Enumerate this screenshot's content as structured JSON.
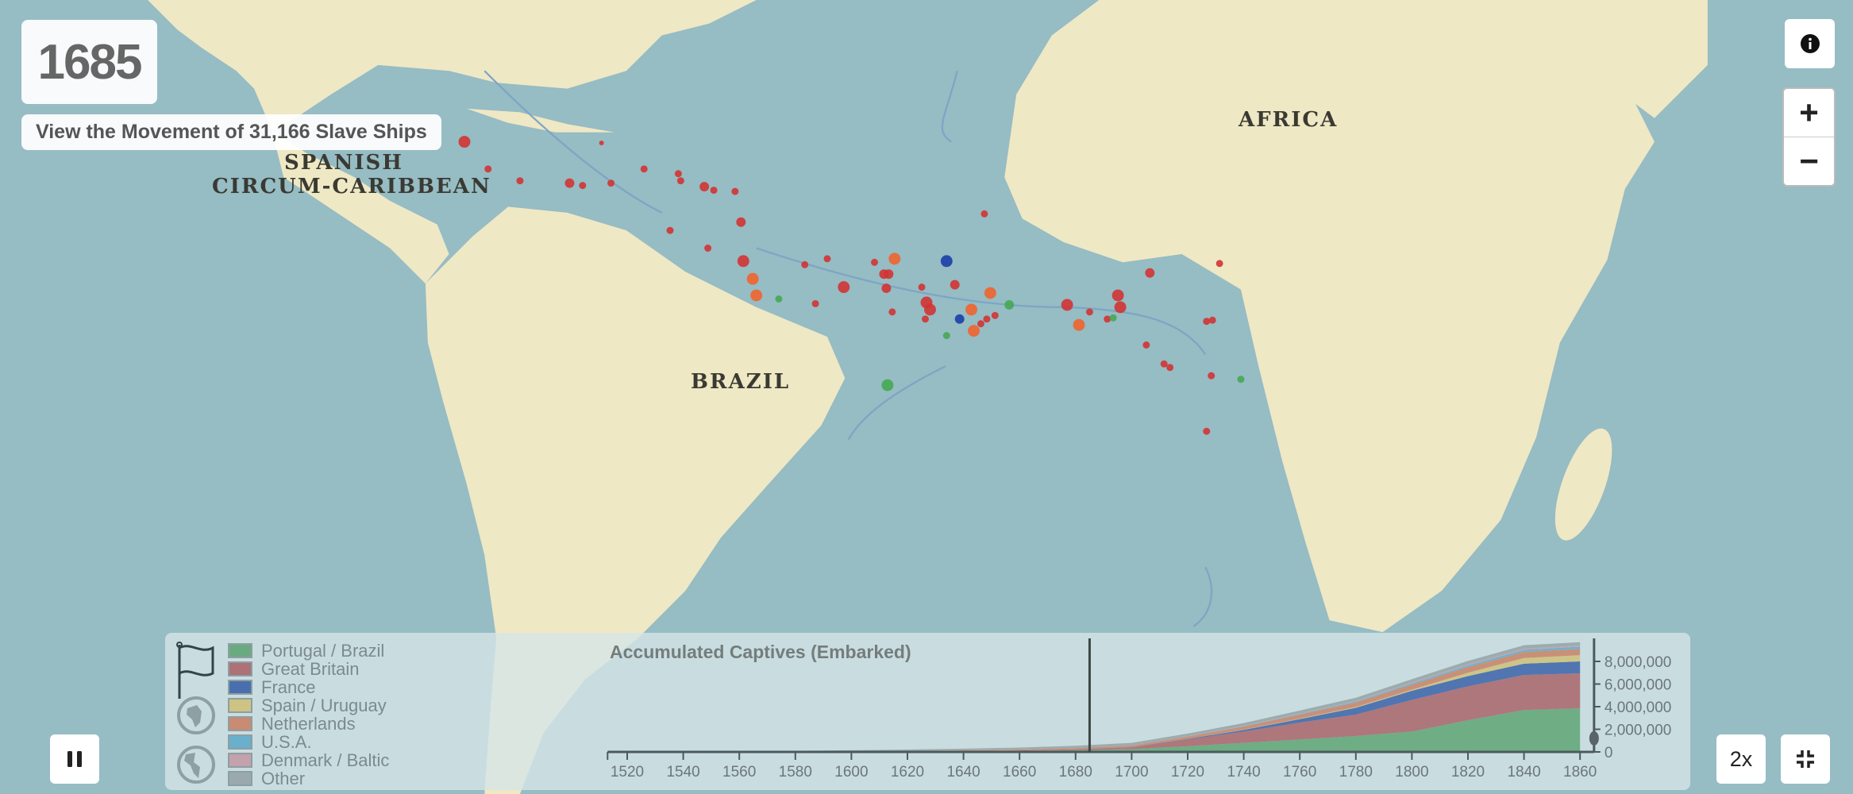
{
  "year": "1685",
  "view_button": "View the Movement of 31,166 Slave Ships",
  "map_labels": {
    "africa": "AFRICA",
    "brazil": "BRAZIL",
    "spanish_1": "SPANISH",
    "spanish_2": "CIRCUM-CARIBBEAN"
  },
  "controls": {
    "zoom_in": "+",
    "zoom_out": "−",
    "speed": "2x",
    "info_icon": "info-icon",
    "pause_icon": "pause-icon",
    "fullscreen_icon": "exit-fullscreen-icon"
  },
  "legend": [
    {
      "label": "Portugal / Brazil",
      "color": "#6aaa80"
    },
    {
      "label": "Great Britain",
      "color": "#ad7176"
    },
    {
      "label": "France",
      "color": "#4a6fae"
    },
    {
      "label": "Spain / Uruguay",
      "color": "#cdc383"
    },
    {
      "label": "Netherlands",
      "color": "#c98b72"
    },
    {
      "label": "U.S.A.",
      "color": "#6aafcc"
    },
    {
      "label": "Denmark / Baltic",
      "color": "#c3a1ad"
    },
    {
      "label": "Other",
      "color": "#9aa9ab"
    }
  ],
  "chart_data": {
    "type": "area",
    "stacked": true,
    "title": "Accumulated Captives (Embarked)",
    "unit": 1000000,
    "x": [
      1520,
      1540,
      1560,
      1580,
      1600,
      1620,
      1640,
      1660,
      1680,
      1700,
      1720,
      1740,
      1760,
      1780,
      1800,
      1820,
      1840,
      1860
    ],
    "series": [
      {
        "name": "Portugal / Brazil",
        "values": [
          0.005,
          0.01,
          0.02,
          0.03,
          0.04,
          0.06,
          0.08,
          0.1,
          0.15,
          0.25,
          0.5,
          0.8,
          1.1,
          1.4,
          1.8,
          2.8,
          3.7,
          3.85
        ]
      },
      {
        "name": "Great Britain",
        "values": [
          0,
          0,
          0,
          0,
          0,
          0,
          0.01,
          0.03,
          0.08,
          0.15,
          0.6,
          1.0,
          1.5,
          1.9,
          2.8,
          3.0,
          3.1,
          3.1
        ]
      },
      {
        "name": "France",
        "values": [
          0,
          0,
          0,
          0,
          0,
          0,
          0,
          0,
          0.01,
          0.02,
          0.05,
          0.15,
          0.3,
          0.6,
          0.8,
          0.9,
          1.0,
          1.05
        ]
      },
      {
        "name": "Spain / Uruguay",
        "values": [
          0,
          0,
          0,
          0,
          0,
          0,
          0,
          0,
          0,
          0,
          0.01,
          0.02,
          0.05,
          0.07,
          0.1,
          0.3,
          0.5,
          0.55
        ]
      },
      {
        "name": "Netherlands",
        "values": [
          0,
          0,
          0,
          0,
          0.005,
          0.02,
          0.05,
          0.08,
          0.1,
          0.15,
          0.2,
          0.28,
          0.35,
          0.4,
          0.45,
          0.5,
          0.55,
          0.55
        ]
      },
      {
        "name": "U.S.A.",
        "values": [
          0,
          0,
          0,
          0,
          0,
          0,
          0,
          0,
          0,
          0,
          0.01,
          0.02,
          0.05,
          0.08,
          0.1,
          0.15,
          0.18,
          0.2
        ]
      },
      {
        "name": "Denmark / Baltic",
        "values": [
          0,
          0,
          0,
          0,
          0,
          0,
          0,
          0,
          0.005,
          0.01,
          0.02,
          0.03,
          0.05,
          0.06,
          0.08,
          0.09,
          0.1,
          0.1
        ]
      },
      {
        "name": "Other",
        "values": [
          0.01,
          0.02,
          0.04,
          0.07,
          0.1,
          0.13,
          0.15,
          0.18,
          0.2,
          0.22,
          0.23,
          0.25,
          0.26,
          0.28,
          0.3,
          0.3,
          0.3,
          0.3
        ]
      }
    ],
    "xlim": [
      1513,
      1865
    ],
    "ylim": [
      0,
      9800000
    ],
    "x_ticks": [
      "1520",
      "1540",
      "1560",
      "1580",
      "1600",
      "1620",
      "1640",
      "1660",
      "1680",
      "1700",
      "1720",
      "1740",
      "1760",
      "1780",
      "1800",
      "1820",
      "1840",
      "1860"
    ],
    "y_ticks": [
      {
        "value": 0,
        "label": "0"
      },
      {
        "value": 2,
        "label": "2,000,000"
      },
      {
        "value": 4,
        "label": "4,000,000"
      },
      {
        "value": 6,
        "label": "6,000,000"
      },
      {
        "value": 8,
        "label": "8,000,000"
      }
    ],
    "current_year": 1685
  }
}
